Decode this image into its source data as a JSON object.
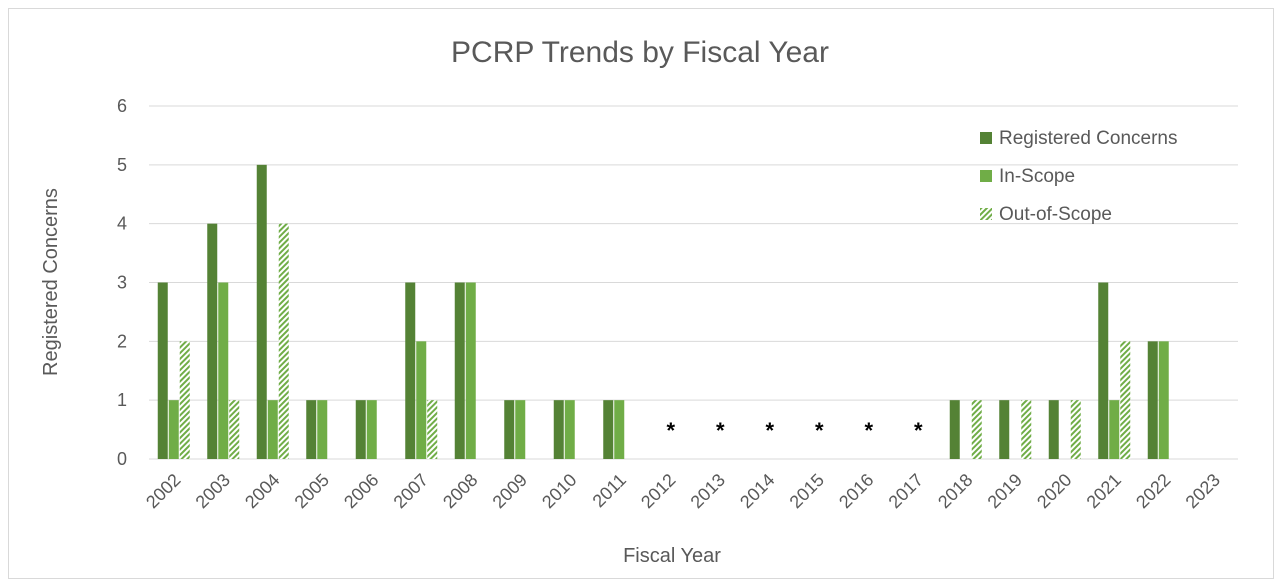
{
  "colors": {
    "registered": "#548235",
    "in_scope": "#70ad47",
    "out_of_scope_stripe": "#70ad47",
    "grid": "#d9d9d9",
    "text": "#595959"
  },
  "chart_data": {
    "type": "bar",
    "title": "PCRP Trends by Fiscal Year",
    "xlabel": "Fiscal Year",
    "ylabel": "Registered Concerns",
    "ylim": [
      0,
      6
    ],
    "yticks": [
      "0",
      "1",
      "2",
      "3",
      "4",
      "5",
      "6"
    ],
    "grid": true,
    "legend_position": "top-right",
    "categories": [
      "2002",
      "2003",
      "2004",
      "2005",
      "2006",
      "2007",
      "2008",
      "2009",
      "2010",
      "2011",
      "2012",
      "2013",
      "2014",
      "2015",
      "2016",
      "2017",
      "2018",
      "2019",
      "2020",
      "2021",
      "2022",
      "2023"
    ],
    "series": [
      {
        "name": "Registered Concerns",
        "pattern": "solid-dark",
        "values": [
          3,
          4,
          5,
          1,
          1,
          3,
          3,
          1,
          1,
          1,
          0,
          0,
          0,
          0,
          0,
          0,
          1,
          1,
          1,
          3,
          2,
          0
        ]
      },
      {
        "name": "In-Scope",
        "pattern": "solid-light",
        "values": [
          1,
          3,
          1,
          1,
          1,
          2,
          3,
          1,
          1,
          1,
          0,
          0,
          0,
          0,
          0,
          0,
          0,
          0,
          0,
          1,
          2,
          0
        ]
      },
      {
        "name": "Out-of-Scope",
        "pattern": "hatched",
        "values": [
          2,
          1,
          4,
          0,
          0,
          1,
          0,
          0,
          0,
          0,
          0,
          0,
          0,
          0,
          0,
          0,
          1,
          1,
          1,
          2,
          0,
          0
        ]
      }
    ],
    "annotations": [
      {
        "category": "2012",
        "text": "*"
      },
      {
        "category": "2013",
        "text": "*"
      },
      {
        "category": "2014",
        "text": "*"
      },
      {
        "category": "2015",
        "text": "*"
      },
      {
        "category": "2016",
        "text": "*"
      },
      {
        "category": "2017",
        "text": "*"
      }
    ]
  }
}
